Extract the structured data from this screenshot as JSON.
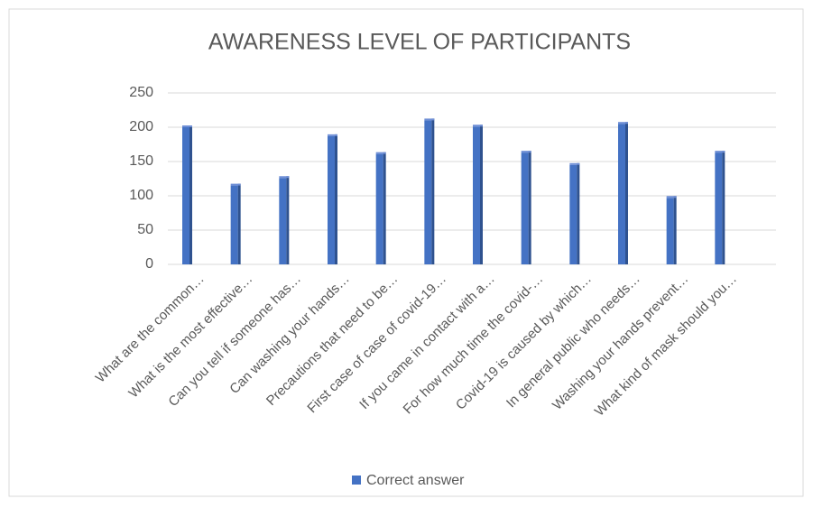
{
  "chart_data": {
    "type": "bar",
    "title": "AWARENESS LEVEL OF PARTICIPANTS",
    "categories": [
      "What are the common…",
      "What is the most effective…",
      "Can you tell if someone has…",
      "Can washing your hands…",
      "Precautions that need to be…",
      "First case of case of covid-19…",
      "If you came in contact with a…",
      "For how much time the covid-…",
      "Covid-19 is caused by which…",
      "In general public who needs…",
      "Washing your hands prevent…",
      "What kind of mask should you…"
    ],
    "series": [
      {
        "name": "Correct answer",
        "color": "#4472c4",
        "values": [
          200,
          115,
          126,
          187,
          161,
          210,
          201,
          163,
          145,
          205,
          97,
          163
        ]
      }
    ],
    "ylim": [
      0,
      250
    ],
    "yticks": [
      0,
      50,
      100,
      150,
      200,
      250
    ],
    "grid": true,
    "legend": "bottom"
  }
}
